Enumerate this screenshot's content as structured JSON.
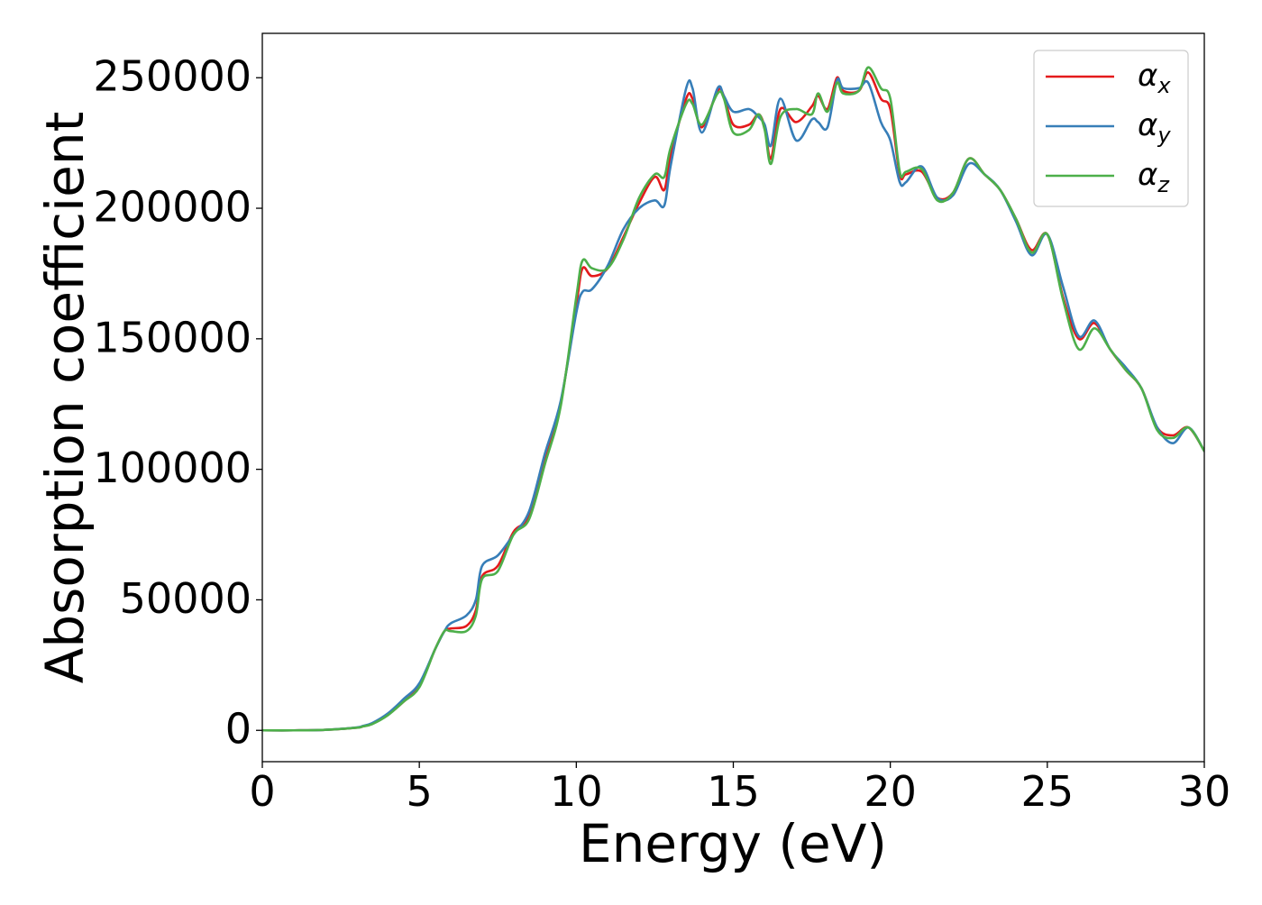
{
  "chart_data": {
    "type": "line",
    "title": "",
    "xlabel": "Energy (eV)",
    "ylabel": "Absorption coefficient",
    "xlim": [
      0,
      30
    ],
    "ylim": [
      -12000,
      267000
    ],
    "xticks": [
      0,
      5,
      10,
      15,
      20,
      25,
      30
    ],
    "yticks": [
      0,
      50000,
      100000,
      150000,
      200000,
      250000
    ],
    "xtick_labels": [
      "0",
      "5",
      "10",
      "15",
      "20",
      "25",
      "30"
    ],
    "ytick_labels": [
      "0",
      "50000",
      "100000",
      "150000",
      "200000",
      "250000"
    ],
    "grid": false,
    "legend": {
      "position": "top-right"
    },
    "series": [
      {
        "name": "α",
        "subscript": "x",
        "color": "#e41a1c",
        "x": [
          0,
          1,
          2,
          3,
          3.2,
          3.5,
          4,
          4.5,
          5,
          5.5,
          5.8,
          6,
          6.5,
          6.8,
          7,
          7.5,
          8,
          8.5,
          9,
          9.5,
          10,
          10.2,
          10.5,
          11,
          11.5,
          12,
          12.5,
          12.8,
          13,
          13.5,
          13.7,
          14,
          14.5,
          14.7,
          15,
          15.5,
          15.8,
          16,
          16.2,
          16.5,
          17,
          17.5,
          17.7,
          18,
          18.3,
          18.5,
          19,
          19.3,
          19.7,
          20,
          20.3,
          20.5,
          21,
          21.5,
          22,
          22.5,
          23,
          23.5,
          24,
          24.5,
          25,
          25.5,
          26,
          26.5,
          27,
          27.5,
          28,
          28.5,
          29,
          29.5,
          30
        ],
        "y": [
          0,
          0,
          200,
          1000,
          1500,
          2500,
          6000,
          11000,
          17000,
          31000,
          38000,
          39000,
          40000,
          46000,
          59000,
          63000,
          76000,
          82000,
          103000,
          125000,
          163000,
          177000,
          174000,
          177000,
          189000,
          202000,
          212000,
          207000,
          220000,
          242000,
          242000,
          231000,
          245000,
          243000,
          232000,
          232000,
          236000,
          231000,
          219000,
          238000,
          233000,
          239000,
          243000,
          238000,
          250000,
          245000,
          245000,
          252000,
          242000,
          238000,
          213000,
          213000,
          214000,
          204000,
          206000,
          219000,
          213000,
          207000,
          196000,
          184000,
          190000,
          166000,
          150000,
          156000,
          146000,
          138000,
          131000,
          116000,
          113000,
          116000,
          107000
        ]
      },
      {
        "name": "α",
        "subscript": "y",
        "color": "#377eb8",
        "x": [
          0,
          1,
          2,
          3,
          3.2,
          3.5,
          4,
          4.5,
          5,
          5.5,
          5.8,
          6,
          6.5,
          6.8,
          7,
          7.5,
          8,
          8.5,
          9,
          9.5,
          10,
          10.2,
          10.5,
          11,
          11.5,
          12,
          12.5,
          12.8,
          13,
          13.5,
          13.7,
          14,
          14.5,
          14.7,
          15,
          15.5,
          15.8,
          16,
          16.2,
          16.5,
          17,
          17.5,
          17.7,
          18,
          18.3,
          18.5,
          19,
          19.3,
          19.7,
          20,
          20.3,
          20.5,
          21,
          21.5,
          22,
          22.5,
          23,
          23.5,
          24,
          24.5,
          25,
          25.5,
          26,
          26.5,
          27,
          27.5,
          28,
          28.5,
          29,
          29.5,
          30
        ],
        "y": [
          0,
          0,
          200,
          1100,
          1700,
          2800,
          6500,
          12000,
          18000,
          31000,
          38000,
          41000,
          44000,
          50000,
          63000,
          67000,
          75000,
          84000,
          106000,
          126000,
          160000,
          168000,
          169000,
          178000,
          192000,
          200000,
          203000,
          201000,
          216000,
          246000,
          246000,
          229000,
          246000,
          243000,
          237000,
          238000,
          235000,
          232000,
          224000,
          242000,
          226000,
          234000,
          233000,
          231000,
          249000,
          246000,
          246000,
          248000,
          233000,
          226000,
          210000,
          210000,
          216000,
          204000,
          205000,
          217000,
          213000,
          207000,
          195000,
          182000,
          190000,
          170000,
          151000,
          157000,
          146000,
          139000,
          131000,
          116000,
          110000,
          116000,
          107000
        ]
      },
      {
        "name": "α",
        "subscript": "z",
        "color": "#4daf4a",
        "x": [
          0,
          1,
          2,
          3,
          3.2,
          3.5,
          4,
          4.5,
          5,
          5.5,
          5.8,
          6,
          6.5,
          6.8,
          7,
          7.5,
          8,
          8.5,
          9,
          9.5,
          10,
          10.2,
          10.5,
          11,
          11.5,
          12,
          12.5,
          12.8,
          13,
          13.5,
          13.7,
          14,
          14.5,
          14.7,
          15,
          15.5,
          15.8,
          16,
          16.2,
          16.5,
          17,
          17.5,
          17.7,
          18,
          18.3,
          18.5,
          19,
          19.3,
          19.7,
          20,
          20.3,
          20.5,
          21,
          21.5,
          22,
          22.5,
          23,
          23.5,
          24,
          24.5,
          25,
          25.5,
          26,
          26.5,
          27,
          27.5,
          28,
          28.5,
          29,
          29.5,
          30
        ],
        "y": [
          0,
          0,
          200,
          1000,
          1500,
          2400,
          5800,
          11000,
          16500,
          31000,
          38000,
          38000,
          38000,
          44000,
          58000,
          61000,
          75000,
          81000,
          102000,
          124000,
          166000,
          180000,
          177000,
          177000,
          188000,
          204000,
          213000,
          212000,
          223000,
          240000,
          240000,
          232000,
          244000,
          242000,
          229000,
          230000,
          236000,
          230000,
          217000,
          235000,
          238000,
          236000,
          244000,
          237000,
          248000,
          244000,
          245000,
          254000,
          246000,
          242000,
          214000,
          214000,
          215000,
          203000,
          206000,
          219000,
          213000,
          207000,
          196000,
          183000,
          190000,
          165000,
          146000,
          154000,
          146000,
          138000,
          131000,
          115000,
          112000,
          116000,
          107000
        ]
      }
    ]
  }
}
